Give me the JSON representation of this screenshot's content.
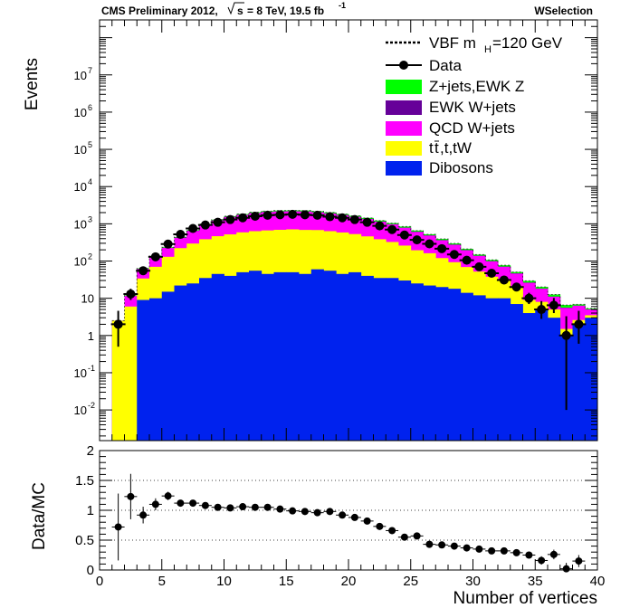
{
  "header": {
    "left": "CMS Preliminary 2012,",
    "energy": "= 8 TeV, 19.5 fb",
    "energy_sqrt": "s",
    "lumi_exp": "-1",
    "right": "WSelection"
  },
  "chart_data": [
    {
      "type": "bar",
      "stacked": true,
      "log_y": true,
      "ylabel": "Events",
      "xlabel": "",
      "xlim": [
        0,
        40
      ],
      "ylim": [
        0.0015,
        300000000
      ],
      "y_tick_labels": [
        {
          "base": "10",
          "exp": "-2",
          "value": 0.01
        },
        {
          "base": "10",
          "exp": "-1",
          "value": 0.1
        },
        {
          "base": "1",
          "exp": "",
          "value": 1
        },
        {
          "base": "10",
          "exp": "",
          "value": 10
        },
        {
          "base": "10",
          "exp": "2",
          "value": 100
        },
        {
          "base": "10",
          "exp": "3",
          "value": 1000
        },
        {
          "base": "10",
          "exp": "4",
          "value": 10000
        },
        {
          "base": "10",
          "exp": "5",
          "value": 100000
        },
        {
          "base": "10",
          "exp": "6",
          "value": 1000000
        },
        {
          "base": "10",
          "exp": "7",
          "value": 10000000
        }
      ],
      "legend_position": "top-right",
      "legend": {
        "vbf": "VBF m",
        "vbf_sub": "H",
        "vbf_rest": "=120 GeV",
        "data": "Data",
        "zjets": "Z+jets,EWK Z",
        "ewkw": "EWK W+jets",
        "qcdw": "QCD W+jets",
        "top_t": "t",
        "top_tbar": "t",
        "top_rest": ",t,tW",
        "diboson": "Dibosons"
      },
      "bin_edges": [
        1,
        2,
        3,
        4,
        5,
        6,
        7,
        8,
        9,
        10,
        11,
        12,
        13,
        14,
        15,
        16,
        17,
        18,
        19,
        20,
        21,
        22,
        23,
        24,
        25,
        26,
        27,
        28,
        29,
        30,
        31,
        32,
        33,
        34,
        35,
        36,
        37,
        38,
        39,
        40
      ],
      "series": [
        {
          "key": "diboson",
          "color": "#0022ee",
          "values": [
            0.0015,
            0.0015,
            9,
            10,
            15,
            22,
            25,
            35,
            45,
            40,
            50,
            55,
            45,
            50,
            50,
            45,
            60,
            55,
            45,
            50,
            40,
            35,
            35,
            30,
            25,
            22,
            20,
            18,
            14,
            12,
            10,
            10,
            7,
            4,
            5,
            3,
            1,
            2,
            3
          ]
        },
        {
          "key": "top",
          "color": "#ffff00",
          "values": [
            2.5,
            6,
            25,
            60,
            115,
            200,
            270,
            350,
            420,
            480,
            540,
            580,
            620,
            640,
            660,
            640,
            620,
            580,
            540,
            480,
            420,
            350,
            290,
            230,
            170,
            140,
            100,
            75,
            55,
            40,
            28,
            20,
            14,
            5,
            3,
            2,
            0.5,
            0.6,
            0.5
          ]
        },
        {
          "key": "qcdw",
          "color": "#ff00ff",
          "values": [
            0,
            5.5,
            27,
            60,
            95,
            200,
            350,
            550,
            760,
            1000,
            1140,
            1300,
            1400,
            1450,
            1450,
            1450,
            1350,
            1250,
            1120,
            1000,
            880,
            750,
            640,
            520,
            410,
            320,
            240,
            180,
            125,
            85,
            60,
            40,
            25,
            17,
            10,
            6,
            4,
            3.7,
            1.5
          ]
        },
        {
          "key": "ewkw",
          "color": "#660099",
          "values": [
            0,
            0,
            0.5,
            1,
            2,
            4,
            6,
            9,
            12,
            14,
            16,
            18,
            20,
            21,
            22,
            22,
            22,
            21,
            20,
            18,
            16,
            14,
            12,
            10,
            8,
            6,
            5,
            4,
            3,
            2,
            1.5,
            1,
            0.7,
            0.4,
            0.2,
            0.1,
            0.1,
            0.05,
            0.02
          ]
        },
        {
          "key": "zjets",
          "color": "#00ff00",
          "values": [
            0,
            0.5,
            2,
            5,
            8,
            15,
            25,
            40,
            55,
            70,
            85,
            95,
            105,
            115,
            120,
            120,
            120,
            115,
            105,
            95,
            85,
            75,
            65,
            55,
            45,
            35,
            28,
            20,
            15,
            10,
            8,
            6,
            4,
            3,
            2,
            1.5,
            1,
            0.5,
            0.3
          ]
        }
      ],
      "data": {
        "x": [
          1.5,
          2.5,
          3.5,
          4.5,
          5.5,
          6.5,
          7.5,
          8.5,
          9.5,
          10.5,
          11.5,
          12.5,
          13.5,
          14.5,
          15.5,
          16.5,
          17.5,
          18.5,
          19.5,
          20.5,
          21.5,
          22.5,
          23.5,
          24.5,
          25.5,
          26.5,
          27.5,
          28.5,
          29.5,
          30.5,
          31.5,
          32.5,
          33.5,
          34.5,
          35.5,
          36.5,
          37.5,
          38.5
        ],
        "y": [
          2,
          13,
          55,
          130,
          285,
          520,
          750,
          930,
          1100,
          1300,
          1450,
          1600,
          1700,
          1750,
          1800,
          1750,
          1700,
          1550,
          1450,
          1300,
          1100,
          880,
          700,
          500,
          370,
          290,
          215,
          150,
          105,
          70,
          47,
          31,
          20,
          10,
          5,
          6.5,
          1,
          2
        ],
        "err_low": [
          1.5,
          4,
          7,
          11,
          17,
          23,
          27,
          30,
          33,
          36,
          38,
          40,
          41,
          42,
          42,
          42,
          41,
          39,
          38,
          36,
          33,
          30,
          26,
          22,
          19,
          17,
          15,
          12,
          10,
          8,
          7,
          5.5,
          4.5,
          3,
          2.2,
          2.5,
          0.99,
          1.4
        ],
        "err_high": [
          2.6,
          5,
          8,
          12,
          18,
          24,
          28,
          31,
          34,
          37,
          39,
          41,
          42,
          43,
          43,
          43,
          42,
          40,
          39,
          37,
          34,
          31,
          27,
          23,
          20,
          18,
          16,
          13,
          11,
          9,
          8,
          6.5,
          5.5,
          4,
          3.4,
          3.7,
          2.3,
          2.6
        ]
      }
    },
    {
      "type": "scatter",
      "ylabel": "Data/MC",
      "xlabel": "Number of vertices",
      "xlim": [
        0,
        40
      ],
      "ylim": [
        0,
        2
      ],
      "x_ticks": [
        "0",
        "5",
        "10",
        "15",
        "20",
        "25",
        "30",
        "35",
        "40"
      ],
      "y_ticks": [
        "0",
        "0.5",
        "1",
        "1.5",
        "2"
      ],
      "grid": true,
      "x": [
        1.5,
        2.5,
        3.5,
        4.5,
        5.5,
        6.5,
        7.5,
        8.5,
        9.5,
        10.5,
        11.5,
        12.5,
        13.5,
        14.5,
        15.5,
        16.5,
        17.5,
        18.5,
        19.5,
        20.5,
        21.5,
        22.5,
        23.5,
        24.5,
        25.5,
        26.5,
        27.5,
        28.5,
        29.5,
        30.5,
        31.5,
        32.5,
        33.5,
        34.5,
        35.5,
        36.5,
        37.5,
        38.5
      ],
      "y": [
        0.72,
        1.23,
        0.92,
        1.1,
        1.24,
        1.12,
        1.12,
        1.08,
        1.05,
        1.04,
        1.06,
        1.05,
        1.05,
        1.02,
        0.99,
        0.98,
        0.96,
        0.98,
        0.92,
        0.88,
        0.82,
        0.73,
        0.66,
        0.55,
        0.57,
        0.43,
        0.42,
        0.4,
        0.37,
        0.35,
        0.32,
        0.32,
        0.29,
        0.25,
        0.16,
        0.26,
        0.02,
        0.15
      ],
      "err": [
        0.56,
        0.38,
        0.14,
        0.1,
        0.07,
        0.05,
        0.04,
        0.03,
        0.03,
        0.03,
        0.03,
        0.03,
        0.02,
        0.02,
        0.02,
        0.02,
        0.02,
        0.02,
        0.02,
        0.02,
        0.02,
        0.02,
        0.02,
        0.02,
        0.02,
        0.02,
        0.02,
        0.02,
        0.02,
        0.02,
        0.02,
        0.03,
        0.03,
        0.04,
        0.07,
        0.08,
        0.1,
        0.1
      ]
    }
  ]
}
